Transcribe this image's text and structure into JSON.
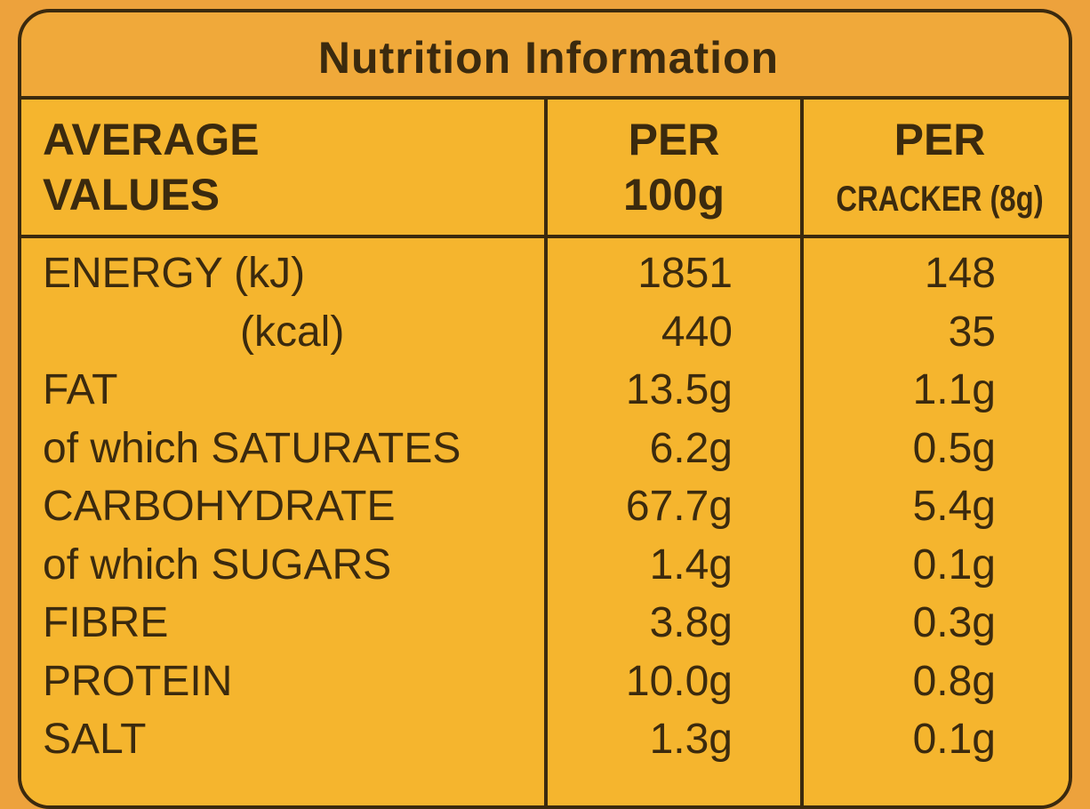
{
  "title": "Nutrition Information",
  "table": {
    "header": [
      [
        "AVERAGE",
        "VALUES"
      ],
      [
        "PER",
        "100g"
      ],
      [
        "PER",
        "CRACKER (8g)"
      ]
    ],
    "rows": [
      [
        "ENERGY (kJ)",
        "1851",
        "148"
      ],
      [
        "(kcal)",
        "440",
        "35"
      ],
      [
        "FAT",
        "13.5g",
        "1.1g"
      ],
      [
        "of which SATURATES",
        "6.2g",
        "0.5g"
      ],
      [
        "CARBOHYDRATE",
        "67.7g",
        "5.4g"
      ],
      [
        "of which SUGARS",
        "1.4g",
        "0.1g"
      ],
      [
        "FIBRE",
        "3.8g",
        "0.3g"
      ],
      [
        "PROTEIN",
        "10.0g",
        "0.8g"
      ],
      [
        "SALT",
        "1.3g",
        "0.1g"
      ]
    ]
  }
}
